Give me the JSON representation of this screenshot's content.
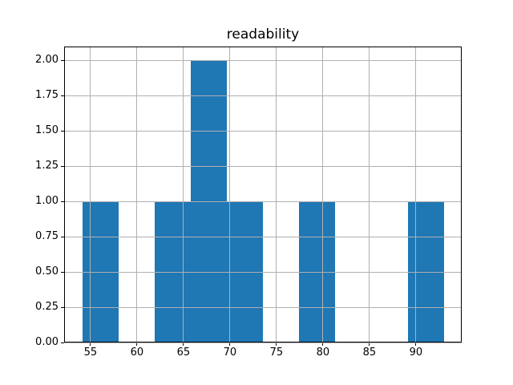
{
  "chart_data": {
    "type": "bar",
    "subtype": "histogram",
    "title": "readability",
    "xlabel": "",
    "ylabel": "",
    "bin_edges": [
      54.1,
      57.99,
      61.88,
      65.77,
      69.66,
      73.55,
      77.44,
      81.33,
      85.22,
      89.11,
      93.0
    ],
    "counts": [
      1,
      0,
      1,
      2,
      1,
      0,
      1,
      0,
      0,
      1
    ],
    "xlim": [
      52.16,
      94.92
    ],
    "ylim": [
      0,
      2.1
    ],
    "x_ticks": [
      55,
      60,
      65,
      70,
      75,
      80,
      85,
      90
    ],
    "x_tick_labels": [
      "55",
      "60",
      "65",
      "70",
      "75",
      "80",
      "85",
      "90"
    ],
    "y_ticks": [
      0,
      0.25,
      0.5,
      0.75,
      1,
      1.25,
      1.5,
      1.75,
      2
    ],
    "y_tick_labels": [
      "0.00",
      "0.25",
      "0.50",
      "0.75",
      "1.00",
      "1.25",
      "1.50",
      "1.75",
      "2.00"
    ],
    "grid": true,
    "grid_position": "above-bars",
    "legend": false,
    "colors": {
      "bar": "#1f77b4",
      "grid": "#b0b0b0",
      "frame": "#000000",
      "text": "#000000",
      "background": "#ffffff"
    }
  }
}
